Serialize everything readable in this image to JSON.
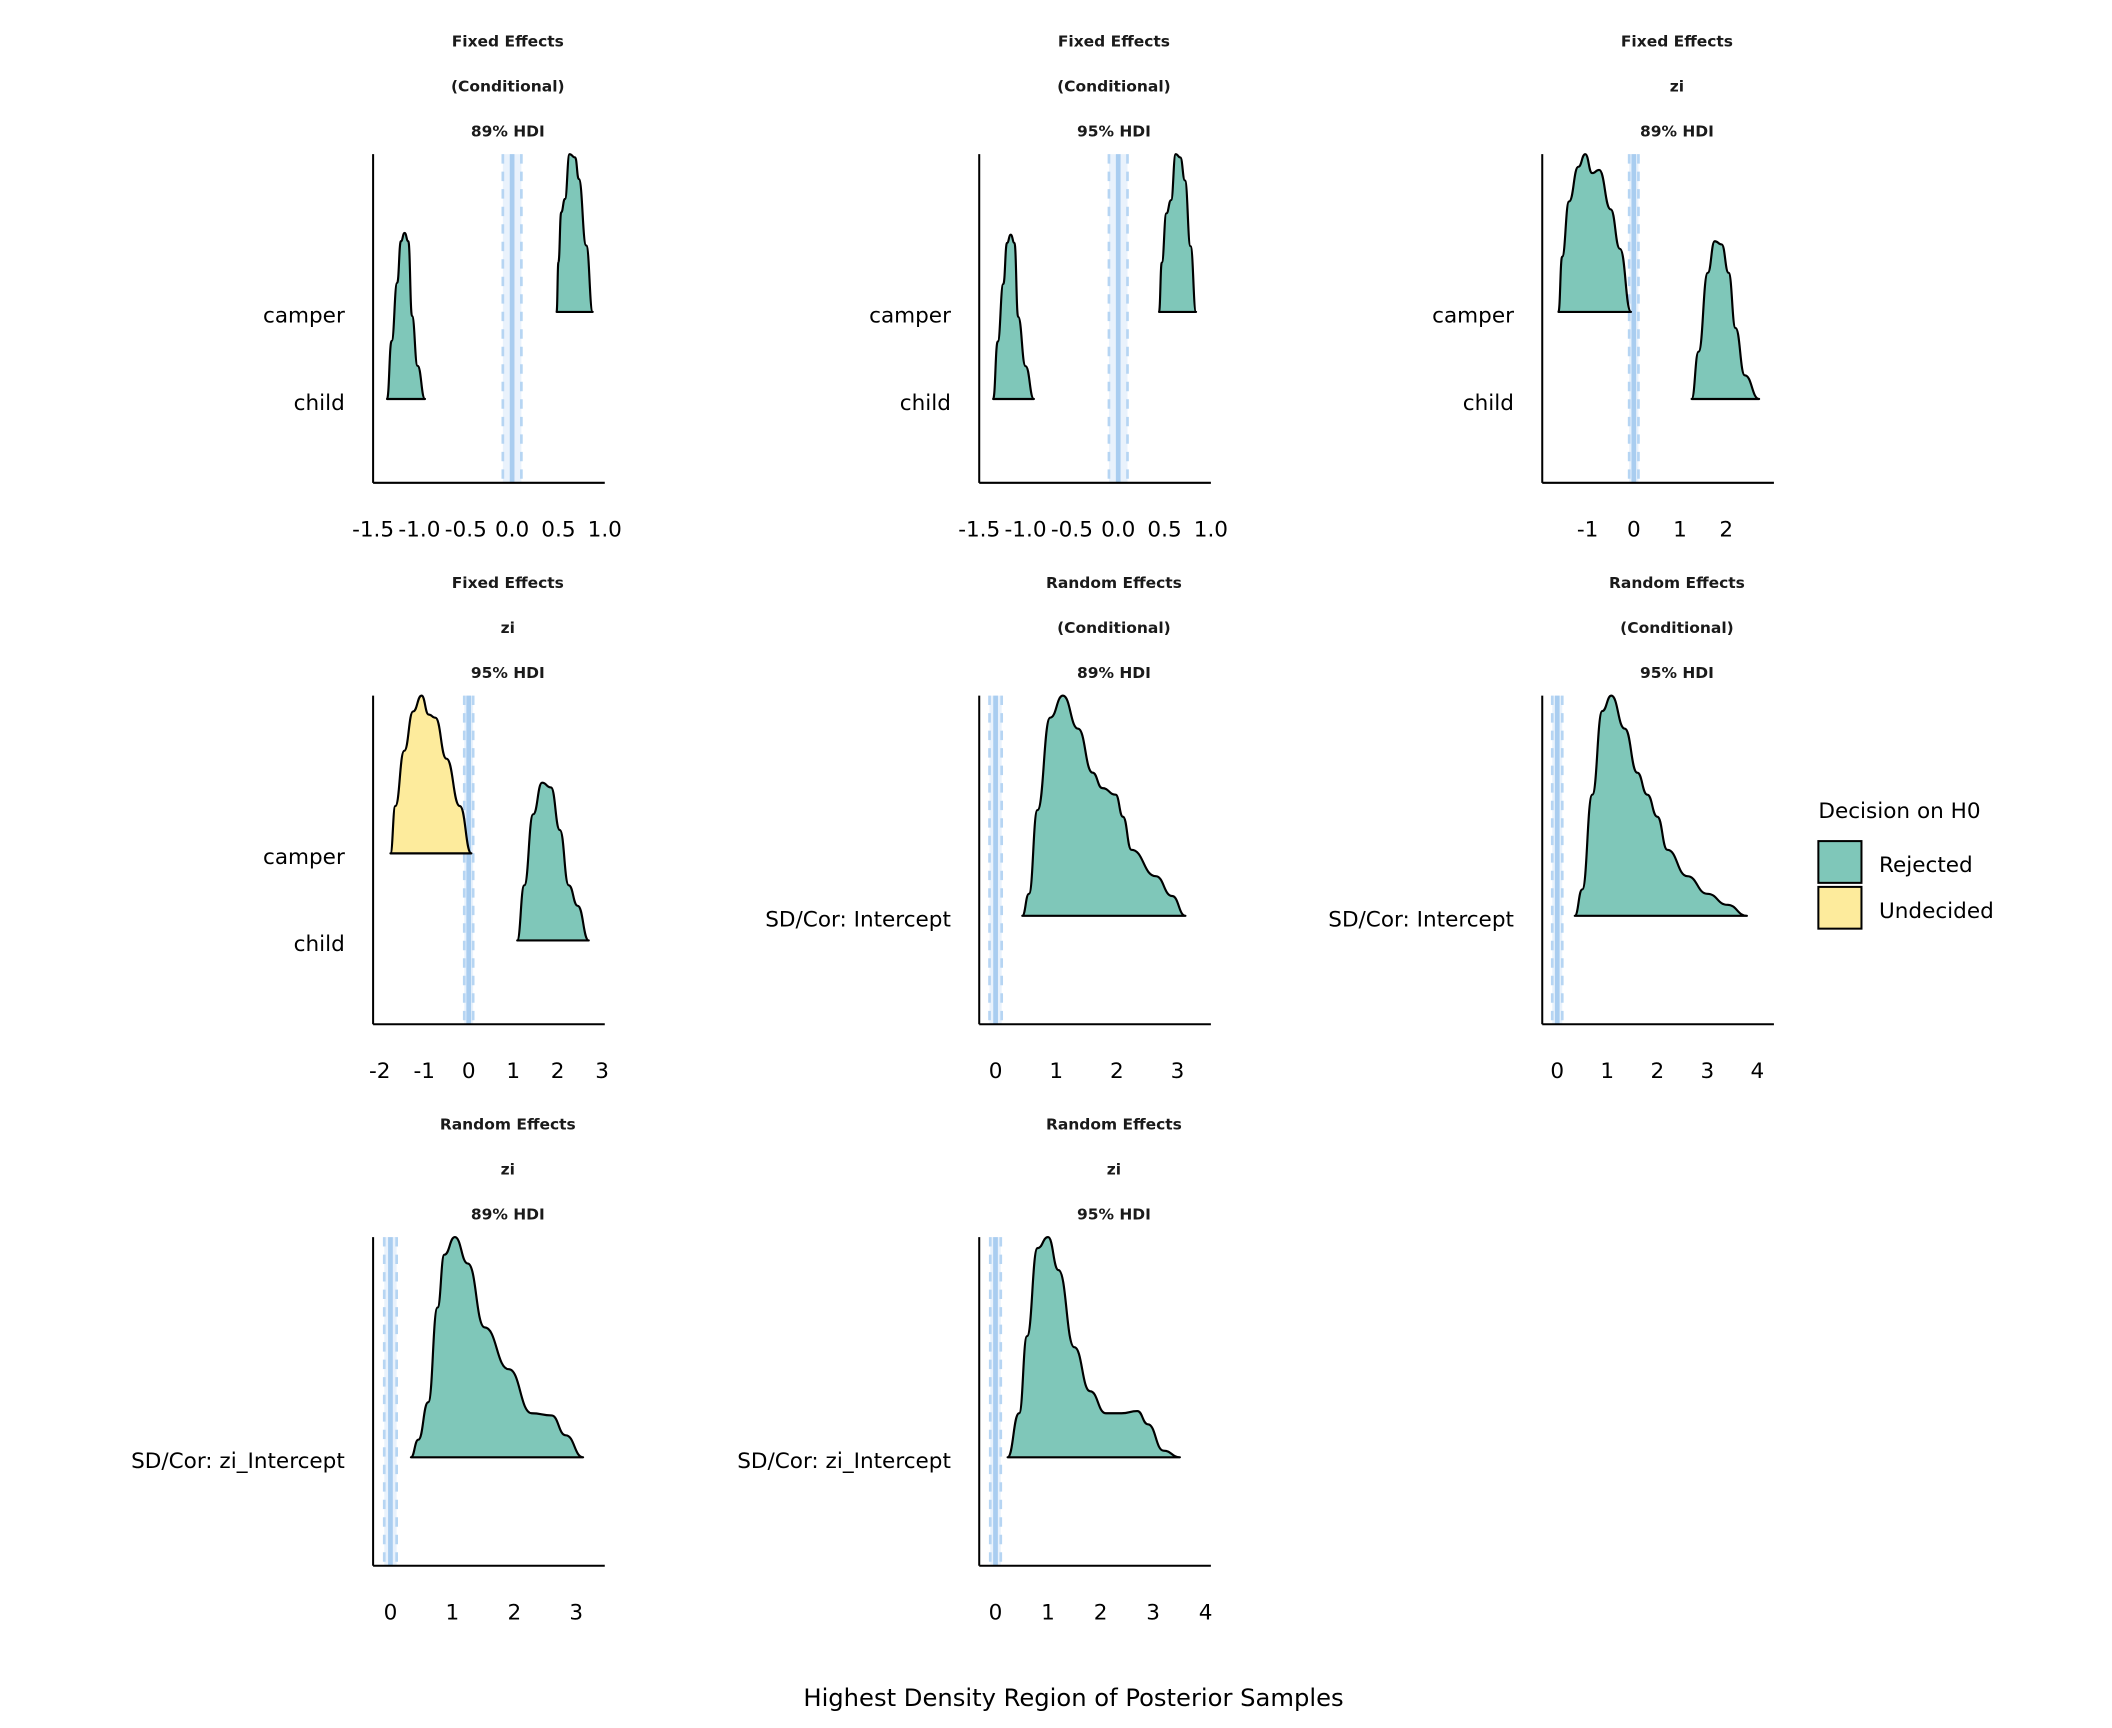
{
  "chart_data": {
    "type": "ridgeline-density",
    "xlabel": "Highest Density Region of Posterior Samples",
    "legend": {
      "title": "Decision on H0",
      "placement": "right",
      "entries": [
        {
          "label": "Rejected",
          "color": "#7fc7b9"
        },
        {
          "label": "Undecided",
          "color": "#fdeb9c"
        }
      ]
    },
    "rope_color": "#a9cdf0",
    "panels": [
      {
        "title": [
          "Fixed Effects",
          "(Conditional)",
          "89% HDI"
        ],
        "xlim": [
          -1.5,
          1.0
        ],
        "xticks": [
          -1.5,
          -1.0,
          -0.5,
          0.0,
          0.5,
          1.0
        ],
        "xtick_labels": [
          "-1.5",
          "-1.0",
          "-0.5",
          "0.0",
          "0.5",
          "1.0"
        ],
        "rope": [
          -0.1,
          0.1
        ],
        "categories": [
          {
            "name": "camper",
            "decision": "Rejected",
            "density": [
              [
                0.48,
                0
              ],
              [
                0.5,
                0.3
              ],
              [
                0.53,
                0.6
              ],
              [
                0.57,
                0.68
              ],
              [
                0.62,
                0.95
              ],
              [
                0.68,
                0.93
              ],
              [
                0.72,
                0.8
              ],
              [
                0.8,
                0.4
              ],
              [
                0.87,
                0
              ]
            ]
          },
          {
            "name": "child",
            "decision": "Rejected",
            "density": [
              [
                -1.35,
                0
              ],
              [
                -1.3,
                0.35
              ],
              [
                -1.24,
                0.7
              ],
              [
                -1.2,
                0.95
              ],
              [
                -1.16,
                1.0
              ],
              [
                -1.12,
                0.95
              ],
              [
                -1.08,
                0.5
              ],
              [
                -1.02,
                0.2
              ],
              [
                -0.94,
                0
              ]
            ]
          }
        ]
      },
      {
        "title": [
          "Fixed Effects",
          "(Conditional)",
          "95% HDI"
        ],
        "xlim": [
          -1.5,
          1.0
        ],
        "xticks": [
          -1.5,
          -1.0,
          -0.5,
          0.0,
          0.5,
          1.0
        ],
        "xtick_labels": [
          "-1.5",
          "-1.0",
          "-0.5",
          "0.0",
          "0.5",
          "1.0"
        ],
        "rope": [
          -0.1,
          0.1
        ],
        "categories": [
          {
            "name": "camper",
            "decision": "Rejected",
            "density": [
              [
                0.44,
                0
              ],
              [
                0.47,
                0.3
              ],
              [
                0.52,
                0.6
              ],
              [
                0.57,
                0.68
              ],
              [
                0.62,
                0.96
              ],
              [
                0.67,
                0.94
              ],
              [
                0.72,
                0.8
              ],
              [
                0.78,
                0.4
              ],
              [
                0.84,
                0
              ]
            ]
          },
          {
            "name": "child",
            "decision": "Rejected",
            "density": [
              [
                -1.35,
                0
              ],
              [
                -1.3,
                0.35
              ],
              [
                -1.24,
                0.7
              ],
              [
                -1.2,
                0.95
              ],
              [
                -1.16,
                1.0
              ],
              [
                -1.12,
                0.95
              ],
              [
                -1.08,
                0.5
              ],
              [
                -1.0,
                0.2
              ],
              [
                -0.91,
                0
              ]
            ]
          }
        ]
      },
      {
        "title": [
          "Fixed Effects",
          "zi",
          "89% HDI"
        ],
        "xlim": [
          -1.98,
          3.03
        ],
        "xticks": [
          -1,
          0,
          1,
          2
        ],
        "xtick_labels": [
          "-1",
          "0",
          "1",
          "2"
        ],
        "rope": [
          -0.1,
          0.1
        ],
        "categories": [
          {
            "name": "camper",
            "decision": "Rejected",
            "density": [
              [
                -1.63,
                0
              ],
              [
                -1.55,
                0.35
              ],
              [
                -1.4,
                0.7
              ],
              [
                -1.2,
                0.92
              ],
              [
                -1.05,
                1.0
              ],
              [
                -0.9,
                0.88
              ],
              [
                -0.75,
                0.9
              ],
              [
                -0.5,
                0.65
              ],
              [
                -0.3,
                0.4
              ],
              [
                -0.06,
                0
              ]
            ]
          },
          {
            "name": "child",
            "decision": "Rejected",
            "density": [
              [
                1.25,
                0
              ],
              [
                1.4,
                0.3
              ],
              [
                1.6,
                0.8
              ],
              [
                1.75,
                1.0
              ],
              [
                1.9,
                0.98
              ],
              [
                2.05,
                0.8
              ],
              [
                2.2,
                0.45
              ],
              [
                2.4,
                0.15
              ],
              [
                2.71,
                0
              ]
            ]
          }
        ]
      },
      {
        "title": [
          "Fixed Effects",
          "zi",
          "95% HDI"
        ],
        "xlim": [
          -2.15,
          3.06
        ],
        "xticks": [
          -2,
          -1,
          0,
          1,
          2,
          3
        ],
        "xtick_labels": [
          "-2",
          "-1",
          "0",
          "1",
          "2",
          "3"
        ],
        "rope": [
          -0.1,
          0.1
        ],
        "categories": [
          {
            "name": "camper",
            "decision": "Undecided",
            "density": [
              [
                -1.76,
                0
              ],
              [
                -1.65,
                0.3
              ],
              [
                -1.45,
                0.65
              ],
              [
                -1.25,
                0.9
              ],
              [
                -1.06,
                1.0
              ],
              [
                -0.9,
                0.88
              ],
              [
                -0.75,
                0.86
              ],
              [
                -0.5,
                0.6
              ],
              [
                -0.2,
                0.3
              ],
              [
                0.06,
                0
              ]
            ]
          },
          {
            "name": "child",
            "decision": "Rejected",
            "density": [
              [
                1.09,
                0
              ],
              [
                1.25,
                0.35
              ],
              [
                1.45,
                0.8
              ],
              [
                1.65,
                1.0
              ],
              [
                1.85,
                0.97
              ],
              [
                2.05,
                0.7
              ],
              [
                2.25,
                0.35
              ],
              [
                2.45,
                0.22
              ],
              [
                2.7,
                0
              ]
            ]
          }
        ]
      },
      {
        "title": [
          "Random Effects",
          "(Conditional)",
          "89% HDI"
        ],
        "xlim": [
          -0.27,
          3.55
        ],
        "xticks": [
          0,
          1,
          2,
          3
        ],
        "xtick_labels": [
          "0",
          "1",
          "2",
          "3"
        ],
        "rope": [
          -0.1,
          0.1
        ],
        "categories": [
          {
            "name": "SD/Cor:  Intercept",
            "decision": "Rejected",
            "density": [
              [
                0.44,
                0
              ],
              [
                0.55,
                0.1
              ],
              [
                0.69,
                0.48
              ],
              [
                0.9,
                0.9
              ],
              [
                1.11,
                1.0
              ],
              [
                1.36,
                0.85
              ],
              [
                1.6,
                0.65
              ],
              [
                1.76,
                0.58
              ],
              [
                1.98,
                0.55
              ],
              [
                2.1,
                0.45
              ],
              [
                2.24,
                0.3
              ],
              [
                2.64,
                0.18
              ],
              [
                2.91,
                0.09
              ],
              [
                3.13,
                0
              ]
            ]
          }
        ]
      },
      {
        "title": [
          "Random Effects",
          "(Conditional)",
          "95% HDI"
        ],
        "xlim": [
          -0.3,
          4.33
        ],
        "xticks": [
          0,
          1,
          2,
          3,
          4
        ],
        "xtick_labels": [
          "0",
          "1",
          "2",
          "3",
          "4"
        ],
        "rope": [
          -0.1,
          0.1
        ],
        "categories": [
          {
            "name": "SD/Cor:  Intercept",
            "decision": "Rejected",
            "density": [
              [
                0.35,
                0
              ],
              [
                0.5,
                0.12
              ],
              [
                0.7,
                0.55
              ],
              [
                0.9,
                0.93
              ],
              [
                1.08,
                1.0
              ],
              [
                1.35,
                0.85
              ],
              [
                1.6,
                0.65
              ],
              [
                1.8,
                0.55
              ],
              [
                2.0,
                0.45
              ],
              [
                2.2,
                0.3
              ],
              [
                2.6,
                0.18
              ],
              [
                3.0,
                0.1
              ],
              [
                3.4,
                0.05
              ],
              [
                3.79,
                0
              ]
            ]
          }
        ]
      },
      {
        "title": [
          "Random Effects",
          "zi",
          "89% HDI"
        ],
        "xlim": [
          -0.28,
          3.46
        ],
        "xticks": [
          0,
          1,
          2,
          3
        ],
        "xtick_labels": [
          "0",
          "1",
          "2",
          "3"
        ],
        "rope": [
          -0.1,
          0.1
        ],
        "categories": [
          {
            "name": "SD/Cor:  zi_Intercept",
            "decision": "Rejected",
            "density": [
              [
                0.33,
                0
              ],
              [
                0.45,
                0.08
              ],
              [
                0.61,
                0.25
              ],
              [
                0.76,
                0.68
              ],
              [
                0.87,
                0.92
              ],
              [
                1.04,
                1.0
              ],
              [
                1.25,
                0.88
              ],
              [
                1.52,
                0.59
              ],
              [
                1.91,
                0.4
              ],
              [
                2.28,
                0.2
              ],
              [
                2.6,
                0.19
              ],
              [
                2.83,
                0.1
              ],
              [
                3.11,
                0
              ]
            ]
          }
        ]
      },
      {
        "title": [
          "Random Effects",
          "zi",
          "95% HDI"
        ],
        "xlim": [
          -0.31,
          4.1
        ],
        "xticks": [
          0,
          1,
          2,
          3,
          4
        ],
        "xtick_labels": [
          "0",
          "1",
          "2",
          "3",
          "4"
        ],
        "rope": [
          -0.1,
          0.1
        ],
        "categories": [
          {
            "name": "SD/Cor:  zi_Intercept",
            "decision": "Rejected",
            "density": [
              [
                0.23,
                0
              ],
              [
                0.45,
                0.2
              ],
              [
                0.6,
                0.55
              ],
              [
                0.8,
                0.95
              ],
              [
                1.0,
                1.0
              ],
              [
                1.2,
                0.85
              ],
              [
                1.5,
                0.5
              ],
              [
                1.8,
                0.3
              ],
              [
                2.1,
                0.2
              ],
              [
                2.4,
                0.2
              ],
              [
                2.7,
                0.21
              ],
              [
                2.9,
                0.15
              ],
              [
                3.2,
                0.03
              ],
              [
                3.51,
                0
              ]
            ]
          }
        ]
      }
    ]
  }
}
